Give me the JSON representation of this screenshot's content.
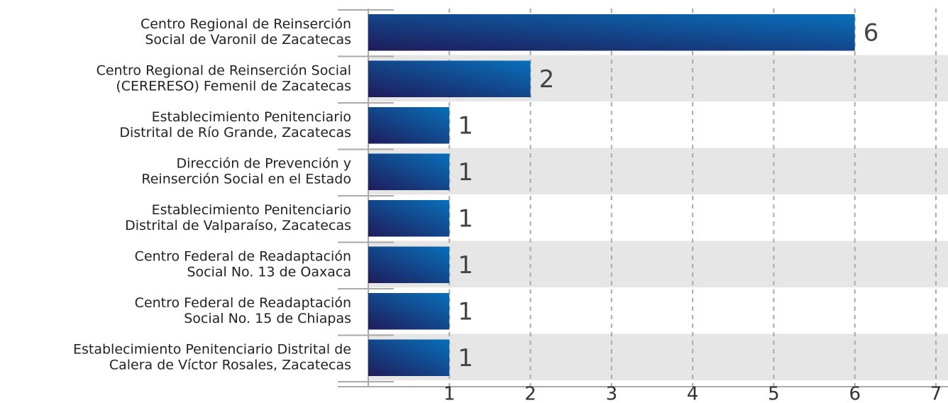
{
  "chart_data": {
    "type": "bar",
    "orientation": "horizontal",
    "categories": [
      [
        "Centro Regional de Reinserción",
        "Social de Varonil de Zacatecas"
      ],
      [
        "Centro Regional de Reinserción Social",
        "(CERERESO) Femenil de Zacatecas"
      ],
      [
        "Establecimiento Penitenciario",
        "Distrital de Río Grande, Zacatecas"
      ],
      [
        "Dirección de Prevención y",
        "Reinserción Social en el Estado"
      ],
      [
        "Establecimiento Penitenciario",
        "Distrital de Valparaíso, Zacatecas"
      ],
      [
        "Centro Federal de Readaptación",
        "Social No. 13 de Oaxaca"
      ],
      [
        "Centro Federal de Readaptación",
        "Social No. 15 de Chiapas"
      ],
      [
        "Establecimiento Penitenciario Distrital de",
        "Calera de Víctor Rosales, Zacatecas"
      ]
    ],
    "values": [
      6,
      2,
      1,
      1,
      1,
      1,
      1,
      1
    ],
    "color": [
      "#1e1c5a",
      "#0870bb"
    ],
    "xlim": [
      0,
      7
    ],
    "xticks": [
      1,
      2,
      3,
      4,
      5,
      6,
      7
    ],
    "grid": true
  }
}
